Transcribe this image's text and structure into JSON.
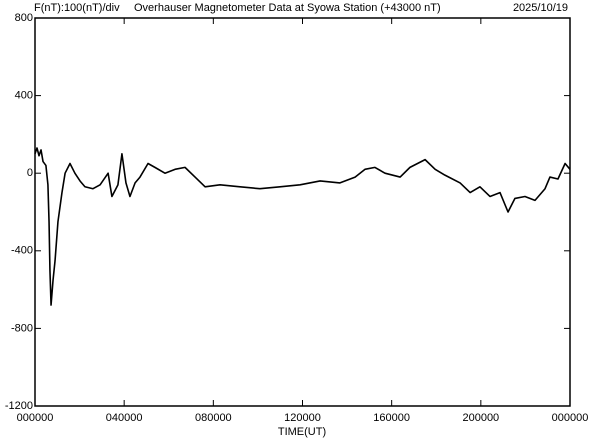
{
  "chart_data": {
    "type": "line",
    "scale_label": "F(nT):100(nT)/div",
    "title": "Overhauser Magnetometer Data at Syowa Station (+43000 nT)",
    "date": "2025/10/19",
    "xlabel": "TIME(UT)",
    "x": [
      0,
      0.09,
      0.18,
      0.27,
      0.36,
      0.49,
      0.58,
      0.63,
      0.67,
      0.72,
      0.81,
      0.9,
      1.03,
      1.21,
      1.35,
      1.57,
      1.79,
      2.02,
      2.24,
      2.6,
      2.92,
      3.28,
      3.45,
      3.72,
      3.9,
      4.08,
      4.26,
      4.49,
      4.71,
      5.07,
      5.38,
      5.83,
      6.28,
      6.73,
      7.18,
      7.63,
      8.3,
      9.2,
      10.09,
      10.99,
      11.89,
      12.79,
      13.68,
      14.36,
      14.8,
      15.25,
      15.7,
      16.38,
      16.82,
      17.5,
      17.95,
      18.39,
      19.07,
      19.52,
      19.96,
      20.41,
      20.86,
      21.22,
      21.53,
      21.98,
      22.43,
      22.88,
      23.1,
      23.46,
      23.78,
      24
    ],
    "values": [
      100,
      130,
      90,
      120,
      60,
      40,
      -60,
      -250,
      -500,
      -680,
      -550,
      -450,
      -250,
      -100,
      0,
      50,
      0,
      -40,
      -70,
      -80,
      -60,
      0,
      -120,
      -60,
      100,
      -50,
      -120,
      -50,
      -20,
      50,
      30,
      0,
      20,
      30,
      -20,
      -70,
      -60,
      -70,
      -80,
      -70,
      -60,
      -40,
      -50,
      -20,
      20,
      30,
      0,
      -20,
      30,
      70,
      20,
      -10,
      -50,
      -100,
      -70,
      -120,
      -100,
      -200,
      -130,
      -120,
      -140,
      -80,
      -20,
      -30,
      50,
      20
    ],
    "color": "#000000",
    "xlim": [
      0,
      24
    ],
    "xticks": [
      {
        "value": 0,
        "label": "000000"
      },
      {
        "value": 4,
        "label": "040000"
      },
      {
        "value": 8,
        "label": "080000"
      },
      {
        "value": 12,
        "label": "120000"
      },
      {
        "value": 16,
        "label": "160000"
      },
      {
        "value": 20,
        "label": "200000"
      },
      {
        "value": 24,
        "label": "000000"
      }
    ],
    "ylim": [
      -1200,
      800
    ],
    "yticks": [
      -1200,
      -800,
      -400,
      0,
      400,
      800
    ]
  }
}
